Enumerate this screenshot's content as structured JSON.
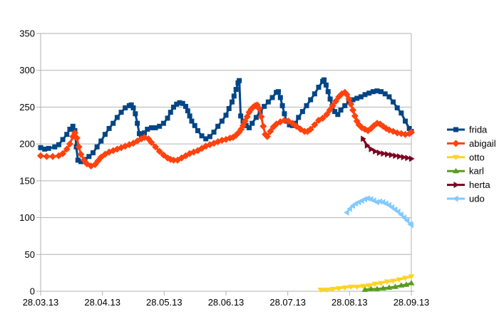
{
  "chart_data": {
    "type": "line",
    "title": "",
    "xlabel": "",
    "ylabel": "",
    "grid": "horizontal",
    "legend_position": "right",
    "x_axis": {
      "tick_labels": [
        "28.03.13",
        "28.04.13",
        "28.05.13",
        "28.06.13",
        "28.07.13",
        "28.08.13",
        "28.09.13"
      ],
      "range_days": [
        0,
        184
      ]
    },
    "y_axis": {
      "min": 0,
      "max": 350,
      "step": 50,
      "tick_labels": [
        "0",
        "50",
        "100",
        "150",
        "200",
        "250",
        "300",
        "350"
      ]
    },
    "series": [
      {
        "name": "frida",
        "color": "#004586",
        "marker": "square",
        "points": [
          [
            0,
            195
          ],
          [
            2,
            193
          ],
          [
            4,
            194
          ],
          [
            7,
            196
          ],
          [
            9,
            199
          ],
          [
            11,
            206
          ],
          [
            13,
            213
          ],
          [
            14.5,
            220
          ],
          [
            16,
            224
          ],
          [
            17,
            218
          ],
          [
            17.7,
            196
          ],
          [
            18.5,
            178
          ],
          [
            20,
            176
          ],
          [
            22,
            179
          ],
          [
            24,
            183
          ],
          [
            26,
            188
          ],
          [
            28,
            196
          ],
          [
            30,
            204
          ],
          [
            32,
            213
          ],
          [
            34,
            221
          ],
          [
            36,
            228
          ],
          [
            38,
            236
          ],
          [
            40,
            243
          ],
          [
            42,
            249
          ],
          [
            44,
            252
          ],
          [
            45,
            253
          ],
          [
            46,
            249
          ],
          [
            47,
            241
          ],
          [
            48,
            228
          ],
          [
            49,
            214
          ],
          [
            50,
            209
          ],
          [
            51.5,
            215
          ],
          [
            53,
            220
          ],
          [
            55,
            222
          ],
          [
            57,
            222
          ],
          [
            59,
            224
          ],
          [
            61,
            228
          ],
          [
            63,
            235
          ],
          [
            64.5,
            243
          ],
          [
            66,
            250
          ],
          [
            67.5,
            254
          ],
          [
            69,
            256
          ],
          [
            70.5,
            255
          ],
          [
            72,
            251
          ],
          [
            73,
            245
          ],
          [
            74,
            238
          ],
          [
            75,
            231
          ],
          [
            76.5,
            225
          ],
          [
            78,
            218
          ],
          [
            80,
            211
          ],
          [
            82,
            207
          ],
          [
            84,
            210
          ],
          [
            86,
            216
          ],
          [
            88,
            224
          ],
          [
            90,
            231
          ],
          [
            92,
            239
          ],
          [
            93.5,
            248
          ],
          [
            95,
            257
          ],
          [
            96,
            265
          ],
          [
            97,
            274
          ],
          [
            98,
            283
          ],
          [
            98.6,
            286
          ],
          [
            99.3,
            238
          ],
          [
            100.5,
            231
          ],
          [
            102,
            225
          ],
          [
            103.5,
            222
          ],
          [
            105,
            228
          ],
          [
            107,
            236
          ],
          [
            109,
            244
          ],
          [
            111,
            251
          ],
          [
            113,
            257
          ],
          [
            115,
            263
          ],
          [
            117,
            270
          ],
          [
            118,
            271
          ],
          [
            119,
            263
          ],
          [
            120,
            252
          ],
          [
            121,
            241
          ],
          [
            122,
            231
          ],
          [
            123.5,
            226
          ],
          [
            125,
            225
          ],
          [
            126.5,
            228
          ],
          [
            128,
            236
          ],
          [
            130,
            244
          ],
          [
            132,
            252
          ],
          [
            134,
            260
          ],
          [
            136,
            268
          ],
          [
            138,
            277
          ],
          [
            140,
            285
          ],
          [
            140.7,
            287
          ],
          [
            141.7,
            280
          ],
          [
            142.7,
            271
          ],
          [
            143.7,
            261
          ],
          [
            144.7,
            251
          ],
          [
            146,
            244
          ],
          [
            147.5,
            240
          ],
          [
            149,
            246
          ],
          [
            151,
            252
          ],
          [
            153,
            257
          ],
          [
            155,
            260
          ],
          [
            157,
            262
          ],
          [
            159,
            264
          ],
          [
            161,
            267
          ],
          [
            163,
            269
          ],
          [
            165,
            271
          ],
          [
            167,
            272
          ],
          [
            169,
            271
          ],
          [
            171,
            268
          ],
          [
            173,
            264
          ],
          [
            175,
            257
          ],
          [
            177,
            249
          ],
          [
            179,
            242
          ],
          [
            181,
            231
          ],
          [
            183,
            221
          ],
          [
            184,
            217
          ]
        ]
      },
      {
        "name": "abigail",
        "color": "#FF420E",
        "marker": "diamond",
        "points": [
          [
            0,
            184
          ],
          [
            3,
            183
          ],
          [
            6,
            183
          ],
          [
            9,
            184
          ],
          [
            11,
            187
          ],
          [
            13,
            193
          ],
          [
            14.5,
            200
          ],
          [
            16,
            210
          ],
          [
            17,
            215
          ],
          [
            18,
            208
          ],
          [
            19,
            196
          ],
          [
            20,
            186
          ],
          [
            21.5,
            178
          ],
          [
            23,
            173
          ],
          [
            25,
            170
          ],
          [
            27,
            172
          ],
          [
            28.5,
            177
          ],
          [
            30,
            182
          ],
          [
            32,
            186
          ],
          [
            34,
            189
          ],
          [
            36,
            191
          ],
          [
            38,
            193
          ],
          [
            40,
            195
          ],
          [
            42,
            197
          ],
          [
            44,
            199
          ],
          [
            46,
            201
          ],
          [
            48,
            204
          ],
          [
            50,
            207
          ],
          [
            51.5,
            209
          ],
          [
            53.5,
            207
          ],
          [
            55,
            202
          ],
          [
            57,
            196
          ],
          [
            59,
            190
          ],
          [
            61,
            185
          ],
          [
            63,
            181
          ],
          [
            64.5,
            179
          ],
          [
            66,
            178
          ],
          [
            68,
            178
          ],
          [
            70,
            181
          ],
          [
            72,
            184
          ],
          [
            74,
            187
          ],
          [
            76,
            189
          ],
          [
            78,
            191
          ],
          [
            80,
            194
          ],
          [
            82,
            197
          ],
          [
            84,
            199
          ],
          [
            86,
            201
          ],
          [
            88,
            203
          ],
          [
            90,
            205
          ],
          [
            92,
            206
          ],
          [
            94,
            208
          ],
          [
            95.5,
            209
          ],
          [
            97,
            212
          ],
          [
            98.5,
            216
          ],
          [
            99.5,
            220
          ],
          [
            100.5,
            225
          ],
          [
            101.5,
            231
          ],
          [
            102.5,
            237
          ],
          [
            103.5,
            243
          ],
          [
            104.5,
            247
          ],
          [
            105.5,
            250
          ],
          [
            106.5,
            252
          ],
          [
            107.5,
            253
          ],
          [
            108.5,
            248
          ],
          [
            109.5,
            237
          ],
          [
            110.5,
            224
          ],
          [
            111.5,
            213
          ],
          [
            112.5,
            210
          ],
          [
            114,
            217
          ],
          [
            115.5,
            223
          ],
          [
            117,
            227
          ],
          [
            119,
            230
          ],
          [
            121,
            232
          ],
          [
            123,
            231
          ],
          [
            125,
            228
          ],
          [
            127,
            224
          ],
          [
            129,
            220
          ],
          [
            131,
            217
          ],
          [
            132.5,
            217
          ],
          [
            134,
            220
          ],
          [
            136,
            226
          ],
          [
            138,
            232
          ],
          [
            140,
            235
          ],
          [
            142,
            240
          ],
          [
            143.5,
            246
          ],
          [
            145,
            252
          ],
          [
            146.5,
            258
          ],
          [
            148,
            264
          ],
          [
            149.5,
            268
          ],
          [
            151,
            270
          ],
          [
            152,
            267
          ],
          [
            153,
            261
          ],
          [
            154,
            254
          ],
          [
            155,
            246
          ],
          [
            156,
            238
          ],
          [
            157,
            231
          ],
          [
            158,
            226
          ],
          [
            159.5,
            222
          ],
          [
            161,
            220
          ],
          [
            162.5,
            218
          ],
          [
            164,
            221
          ],
          [
            165.5,
            225
          ],
          [
            167,
            228
          ],
          [
            168.5,
            227
          ],
          [
            170,
            224
          ],
          [
            171.5,
            221
          ],
          [
            173,
            219
          ],
          [
            175,
            217
          ],
          [
            177,
            215
          ],
          [
            179,
            214
          ],
          [
            181,
            213
          ],
          [
            183,
            214
          ],
          [
            184,
            216
          ]
        ]
      },
      {
        "name": "otto",
        "color": "#FFD320",
        "marker": "arrow-down",
        "points": [
          [
            139,
            2
          ],
          [
            142,
            2
          ],
          [
            145,
            3
          ],
          [
            148,
            4
          ],
          [
            151,
            5
          ],
          [
            154,
            6
          ],
          [
            157,
            6
          ],
          [
            160,
            7
          ],
          [
            163,
            8
          ],
          [
            166,
            10
          ],
          [
            169,
            11
          ],
          [
            172,
            13
          ],
          [
            175,
            14
          ],
          [
            178,
            16
          ],
          [
            181,
            18
          ],
          [
            184,
            20
          ]
        ]
      },
      {
        "name": "karl",
        "color": "#579D1C",
        "marker": "arrow-up",
        "points": [
          [
            161,
            2
          ],
          [
            164,
            3
          ],
          [
            167,
            3
          ],
          [
            170,
            4
          ],
          [
            173,
            5
          ],
          [
            176,
            6
          ],
          [
            179,
            8
          ],
          [
            181.5,
            9
          ],
          [
            184,
            11
          ]
        ]
      },
      {
        "name": "herta",
        "color": "#7E0021",
        "marker": "arrow-right",
        "points": [
          [
            160,
            207
          ],
          [
            162,
            198
          ],
          [
            164,
            193
          ],
          [
            166,
            190
          ],
          [
            168,
            188
          ],
          [
            170,
            187
          ],
          [
            172,
            186
          ],
          [
            174,
            185
          ],
          [
            176,
            184
          ],
          [
            178,
            183
          ],
          [
            180,
            182
          ],
          [
            182,
            181
          ],
          [
            184,
            180
          ]
        ]
      },
      {
        "name": "udo",
        "color": "#83CAFF",
        "marker": "arrow-left",
        "points": [
          [
            152,
            107
          ],
          [
            153.5,
            112
          ],
          [
            155,
            116
          ],
          [
            156.5,
            119
          ],
          [
            158,
            121
          ],
          [
            159.5,
            123
          ],
          [
            161,
            125
          ],
          [
            162.5,
            126
          ],
          [
            164,
            125
          ],
          [
            165.5,
            123
          ],
          [
            167,
            121
          ],
          [
            168.5,
            122
          ],
          [
            170,
            121
          ],
          [
            171.5,
            119
          ],
          [
            173,
            117
          ],
          [
            174.5,
            114
          ],
          [
            176,
            111
          ],
          [
            177.5,
            108
          ],
          [
            179,
            104
          ],
          [
            180.5,
            100
          ],
          [
            182,
            96
          ],
          [
            183.5,
            91
          ],
          [
            184,
            90
          ]
        ]
      }
    ],
    "legend_labels": [
      "frida",
      "abigail",
      "otto",
      "karl",
      "herta",
      "udo"
    ]
  },
  "layout_colors": {
    "background": "#ffffff",
    "grid": "#b3b3b3",
    "axis": "#b3b3b3",
    "label": "#000000"
  }
}
